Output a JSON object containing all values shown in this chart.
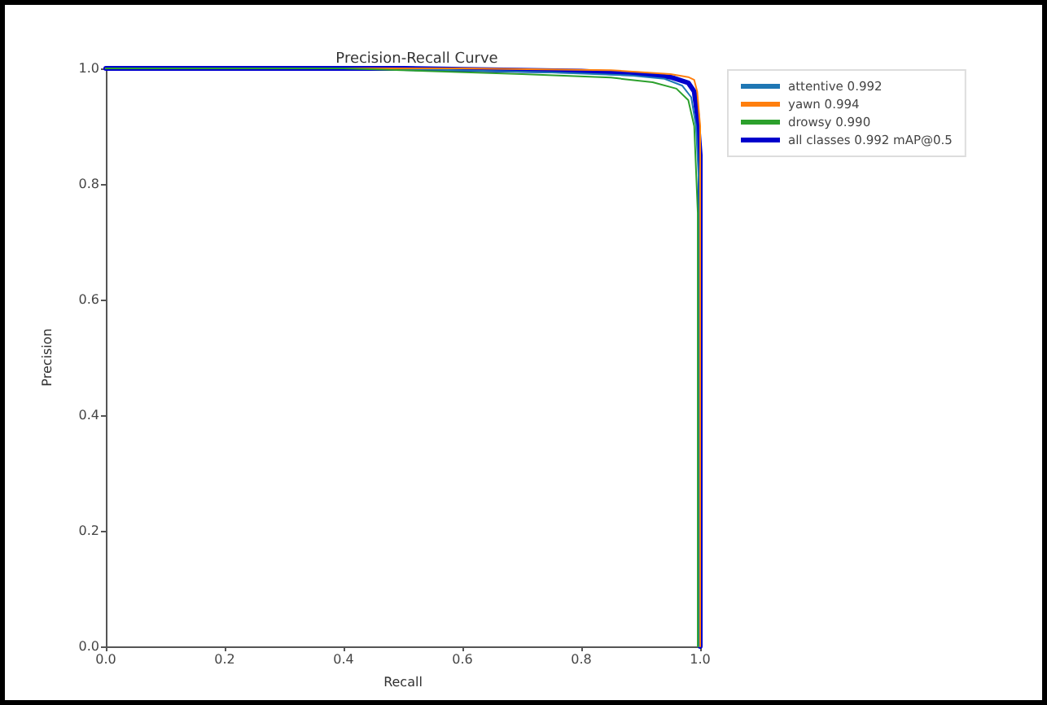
{
  "chart_data": {
    "type": "line",
    "title": "Precision-Recall Curve",
    "xlabel": "Recall",
    "ylabel": "Precision",
    "xlim": [
      0,
      1
    ],
    "ylim": [
      0,
      1
    ],
    "xticks": [
      {
        "value": 0,
        "label": "0.0"
      },
      {
        "value": 0.2,
        "label": "0.2"
      },
      {
        "value": 0.4,
        "label": "0.4"
      },
      {
        "value": 0.6,
        "label": "0.6"
      },
      {
        "value": 0.8,
        "label": "0.8"
      },
      {
        "value": 1,
        "label": "1.0"
      }
    ],
    "yticks": [
      {
        "value": 0,
        "label": "0.0"
      },
      {
        "value": 0.2,
        "label": "0.2"
      },
      {
        "value": 0.4,
        "label": "0.4"
      },
      {
        "value": 0.6,
        "label": "0.6"
      },
      {
        "value": 0.8,
        "label": "0.8"
      },
      {
        "value": 1,
        "label": "1.0"
      }
    ],
    "grid": false,
    "legend": "top right",
    "marker": "none",
    "line_style": "solid",
    "series": [
      {
        "name": "attentive 0.992",
        "color": "#1f77b4",
        "x": [
          0,
          0.45,
          0.75,
          0.88,
          0.94,
          0.97,
          0.985,
          0.993,
          0.998,
          0.998
        ],
        "values": [
          1,
          1,
          0.993,
          0.988,
          0.982,
          0.97,
          0.95,
          0.9,
          0.8,
          0
        ]
      },
      {
        "name": "yawn 0.994",
        "color": "#ff7f0e",
        "x": [
          0,
          0.6,
          0.85,
          0.95,
          0.98,
          0.99,
          0.995,
          1.0,
          1.0
        ],
        "values": [
          1,
          1,
          0.997,
          0.99,
          0.985,
          0.98,
          0.96,
          0.9,
          0
        ]
      },
      {
        "name": "drowsy 0.990",
        "color": "#2ca02c",
        "x": [
          0,
          0.4,
          0.7,
          0.85,
          0.92,
          0.96,
          0.98,
          0.99,
          0.996,
          0.996
        ],
        "values": [
          1,
          1,
          0.99,
          0.984,
          0.976,
          0.965,
          0.945,
          0.9,
          0.75,
          0
        ]
      },
      {
        "name": "all classes 0.992 mAP@0.5",
        "color": "#0000cc",
        "x": [
          0,
          0.5,
          0.8,
          0.9,
          0.95,
          0.98,
          0.99,
          0.995,
          1.0,
          1.0
        ],
        "values": [
          1,
          1,
          0.995,
          0.99,
          0.985,
          0.975,
          0.96,
          0.92,
          0.85,
          0
        ]
      }
    ]
  }
}
